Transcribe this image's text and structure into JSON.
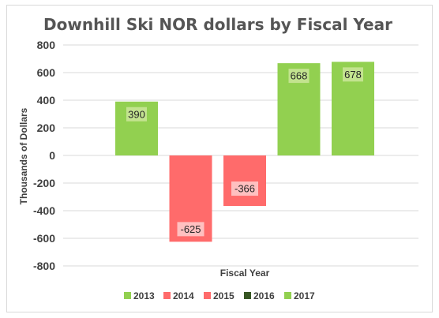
{
  "chart_data": {
    "type": "bar",
    "title": "Downhill Ski NOR dollars by Fiscal Year",
    "xlabel": "Fiscal Year",
    "ylabel": "Thousands of Dollars",
    "ylim": [
      -800,
      800
    ],
    "yticks": [
      "800",
      "600",
      "400",
      "200",
      "0",
      "-200",
      "-400",
      "-600",
      "-800"
    ],
    "grid": true,
    "legend_position": "bottom",
    "series": [
      {
        "name": "2013",
        "color": "#92d050",
        "values": [
          390,
          null,
          null,
          null,
          null
        ]
      },
      {
        "name": "2014",
        "color": "#ff6b6b",
        "values": [
          null,
          -625,
          null,
          null,
          null
        ]
      },
      {
        "name": "2015",
        "color": "#ff6b6b",
        "values": [
          null,
          null,
          -366,
          null,
          null
        ]
      },
      {
        "name": "2016",
        "color": "#375623",
        "values": [
          null,
          null,
          null,
          668,
          null
        ]
      },
      {
        "name": "2017",
        "color": "#92d050",
        "values": [
          null,
          null,
          null,
          null,
          678
        ]
      }
    ],
    "bars": [
      {
        "series": "2013",
        "value": 390,
        "label": "390",
        "color": "#92d050",
        "label_bg": "#c3e38f"
      },
      {
        "series": "2014",
        "value": -625,
        "label": "-625",
        "color": "#ff6b6b",
        "label_bg": "#ffc0c0"
      },
      {
        "series": "2015",
        "value": -366,
        "label": "-366",
        "color": "#ff6b6b",
        "label_bg": "#ffc0c0"
      },
      {
        "series": "2016",
        "value": 668,
        "label": "668",
        "color": "#92d050",
        "label_bg": "#c3e38f"
      },
      {
        "series": "2017",
        "value": 678,
        "label": "678",
        "color": "#92d050",
        "label_bg": "#c3e38f"
      }
    ]
  }
}
